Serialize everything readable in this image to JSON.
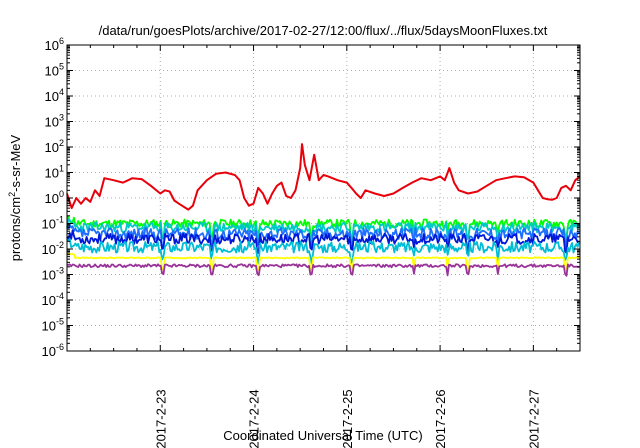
{
  "chart_data": {
    "type": "line",
    "title": "/data/run/goesPlots/archive/2017-02-27/12:00/flux/../flux/5daysMoonFluxes.txt",
    "xlabel": "Coordinated Universal Time (UTC)",
    "ylabel": {
      "base": "protons/cm",
      "sup": "2",
      "rest": "-s-sr-MeV"
    },
    "x_tick_labels": [
      "2017-2-23",
      "2017-2-24",
      "2017-2-25",
      "2017-2-26",
      "2017-2-27"
    ],
    "x_range_days": [
      -1.0,
      4.5
    ],
    "y_scale": "log",
    "y_exponent_range": [
      -6,
      6
    ],
    "y_tick_base": "10",
    "y_tick_exponents": [
      "-6",
      "-5",
      "-4",
      "-3",
      "-2",
      "-1",
      "0",
      "1",
      "2",
      "3",
      "4",
      "5",
      "6"
    ],
    "grid": true,
    "series": [
      {
        "color": "#e8000b",
        "points": [
          [
            -1.0,
            1.5
          ],
          [
            -0.95,
            0.4
          ],
          [
            -0.9,
            1.0
          ],
          [
            -0.85,
            0.6
          ],
          [
            -0.8,
            1.0
          ],
          [
            -0.75,
            0.7
          ],
          [
            -0.7,
            2.0
          ],
          [
            -0.65,
            1.2
          ],
          [
            -0.6,
            6.0
          ],
          [
            -0.5,
            5.0
          ],
          [
            -0.4,
            4.0
          ],
          [
            -0.3,
            6.0
          ],
          [
            -0.2,
            5.5
          ],
          [
            -0.1,
            3.0
          ],
          [
            0.0,
            1.5
          ],
          [
            0.05,
            2.0
          ],
          [
            0.1,
            1.8
          ],
          [
            0.15,
            0.8
          ],
          [
            0.2,
            0.6
          ],
          [
            0.3,
            0.35
          ],
          [
            0.35,
            0.5
          ],
          [
            0.4,
            2.0
          ],
          [
            0.5,
            5.0
          ],
          [
            0.6,
            9.0
          ],
          [
            0.7,
            10.0
          ],
          [
            0.8,
            8.0
          ],
          [
            0.85,
            5.0
          ],
          [
            0.9,
            1.0
          ],
          [
            0.95,
            0.5
          ],
          [
            1.0,
            0.6
          ],
          [
            1.05,
            2.5
          ],
          [
            1.1,
            1.5
          ],
          [
            1.15,
            0.6
          ],
          [
            1.2,
            1.5
          ],
          [
            1.25,
            3.0
          ],
          [
            1.3,
            4.0
          ],
          [
            1.35,
            1.2
          ],
          [
            1.4,
            1.0
          ],
          [
            1.45,
            2.0
          ],
          [
            1.5,
            15.0
          ],
          [
            1.52,
            130.0
          ],
          [
            1.55,
            20.0
          ],
          [
            1.6,
            5.0
          ],
          [
            1.65,
            50.0
          ],
          [
            1.7,
            5.0
          ],
          [
            1.75,
            8.0
          ],
          [
            1.8,
            7.0
          ],
          [
            1.9,
            5.0
          ],
          [
            2.0,
            4.0
          ],
          [
            2.05,
            2.5
          ],
          [
            2.1,
            1.5
          ],
          [
            2.15,
            1.0
          ],
          [
            2.2,
            2.0
          ],
          [
            2.3,
            1.5
          ],
          [
            2.4,
            1.2
          ],
          [
            2.5,
            1.5
          ],
          [
            2.6,
            2.5
          ],
          [
            2.7,
            4.0
          ],
          [
            2.8,
            6.0
          ],
          [
            2.9,
            5.0
          ],
          [
            3.0,
            7.0
          ],
          [
            3.05,
            5.0
          ],
          [
            3.1,
            15.0
          ],
          [
            3.15,
            4.0
          ],
          [
            3.2,
            2.0
          ],
          [
            3.3,
            1.5
          ],
          [
            3.4,
            1.8
          ],
          [
            3.5,
            3.0
          ],
          [
            3.6,
            5.0
          ],
          [
            3.7,
            6.0
          ],
          [
            3.8,
            7.0
          ],
          [
            3.9,
            6.5
          ],
          [
            4.0,
            4.0
          ],
          [
            4.05,
            2.0
          ],
          [
            4.1,
            1.0
          ],
          [
            4.15,
            0.9
          ],
          [
            4.2,
            0.85
          ],
          [
            4.25,
            1.0
          ],
          [
            4.3,
            2.5
          ],
          [
            4.35,
            3.0
          ],
          [
            4.4,
            2.0
          ],
          [
            4.45,
            5.0
          ],
          [
            4.5,
            7.0
          ]
        ]
      },
      {
        "color": "#00ff00",
        "base": 0.1,
        "amp": 0.16,
        "seed": 11
      },
      {
        "color": "#00c8c8",
        "base": 0.07,
        "amp": 0.2,
        "seed": 23
      },
      {
        "color": "#1e6eff",
        "base": 0.04,
        "amp": 0.22,
        "seed": 37
      },
      {
        "color": "#0018d8",
        "base": 0.025,
        "amp": 0.2,
        "seed": 53
      },
      {
        "color": "#00bcd4",
        "base": 0.012,
        "amp": 0.22,
        "seed": 67
      },
      {
        "color": "#ffff00",
        "base": 0.0045,
        "amp": 0.02,
        "seed": 79
      },
      {
        "color": "#993399",
        "base": 0.0022,
        "amp": 0.06,
        "seed": 91
      }
    ]
  }
}
